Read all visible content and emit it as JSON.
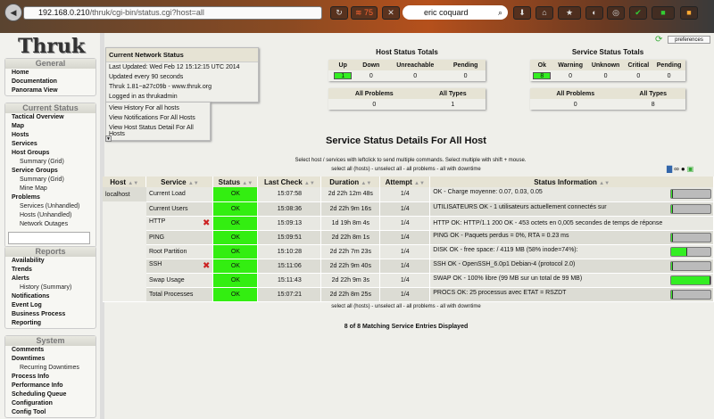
{
  "browser": {
    "url_host": "192.168.0.210",
    "url_path": "/thruk/cgi-bin/status.cgi?host=all",
    "search": "eric coquard",
    "rss_count": "75"
  },
  "sidebar": {
    "logo": "Thruk",
    "sections": [
      {
        "title": "General",
        "items": [
          {
            "label": "Home"
          },
          {
            "label": "Documentation"
          },
          {
            "label": "Panorama View"
          }
        ]
      },
      {
        "title": "Current Status",
        "items": [
          {
            "label": "Tactical Overview"
          },
          {
            "label": "Map"
          },
          {
            "label": "Hosts"
          },
          {
            "label": "Services"
          },
          {
            "label": "Host Groups"
          },
          {
            "label": "Summary (Grid)",
            "sub": true
          },
          {
            "label": "Service Groups"
          },
          {
            "label": "Summary (Grid)",
            "sub": true
          },
          {
            "label": "Mine Map",
            "sub": true
          },
          {
            "label": "Problems"
          },
          {
            "label": "Services (Unhandled)",
            "sub": true
          },
          {
            "label": "Hosts (Unhandled)",
            "sub": true
          },
          {
            "label": "Network Outages",
            "sub": true
          }
        ]
      },
      {
        "title": "Reports",
        "items": [
          {
            "label": "Availability"
          },
          {
            "label": "Trends"
          },
          {
            "label": "Alerts"
          },
          {
            "label": "History (Summary)",
            "sub": true
          },
          {
            "label": "Notifications"
          },
          {
            "label": "Event Log"
          },
          {
            "label": "Business Process"
          },
          {
            "label": "Reporting"
          }
        ]
      },
      {
        "title": "System",
        "items": [
          {
            "label": "Comments"
          },
          {
            "label": "Downtimes"
          },
          {
            "label": "Recurring Downtimes",
            "sub": true
          },
          {
            "label": "Process Info"
          },
          {
            "label": "Performance Info"
          },
          {
            "label": "Scheduling Queue"
          },
          {
            "label": "Configuration"
          },
          {
            "label": "Config Tool"
          }
        ]
      }
    ]
  },
  "network": {
    "title": "Current Network Status",
    "last_updated": "Last Updated: Wed Feb 12 15:12:15 UTC 2014",
    "interval": "Updated every 90 seconds",
    "version": "Thruk 1.81~a27c09b - www.thruk.org",
    "logged_in": "Logged in as thrukadmin",
    "links": [
      "View History For all hosts",
      "View Notifications For All Hosts",
      "View Host Status Detail For All Hosts"
    ]
  },
  "host_totals": {
    "title": "Host Status Totals",
    "headers": [
      "Up",
      "Down",
      "Unreachable",
      "Pending"
    ],
    "values": [
      "1",
      "0",
      "0",
      "0"
    ],
    "headers2": [
      "All Problems",
      "All Types"
    ],
    "values2": [
      "0",
      "1"
    ]
  },
  "service_totals": {
    "title": "Service Status Totals",
    "headers": [
      "Ok",
      "Warning",
      "Unknown",
      "Critical",
      "Pending"
    ],
    "values": [
      "8",
      "0",
      "0",
      "0",
      "0"
    ],
    "headers2": [
      "All Problems",
      "All Types"
    ],
    "values2": [
      "0",
      "8"
    ]
  },
  "preferences": "preferences",
  "details": {
    "title": "Service Status Details For All Host",
    "hint": "Select host / services with leftclick to send multiple commands. Select multiple with shift + mouse.",
    "select_links": "select all (hosts) - unselect all - all problems - all with downtime",
    "footer": "8 of 8 Matching Service Entries Displayed",
    "columns": [
      "Host",
      "Service",
      "Status",
      "Last Check",
      "Duration",
      "Attempt",
      "Status Information"
    ],
    "rows": [
      {
        "host": "localhost",
        "service": "Current Load",
        "status": "OK",
        "last_check": "15:07:58",
        "duration": "2d 22h 12m 48s",
        "attempt": "1/4",
        "info": "OK - Charge moyenne: 0.07, 0.03, 0.05",
        "perf": 2,
        "disabled": false
      },
      {
        "host": "",
        "service": "Current Users",
        "status": "OK",
        "last_check": "15:08:36",
        "duration": "2d 22h 9m 16s",
        "attempt": "1/4",
        "info": "UTILISATEURS OK - 1 utilisateurs actuellement connectés sur",
        "perf": 2,
        "disabled": false
      },
      {
        "host": "",
        "service": "HTTP",
        "status": "OK",
        "last_check": "15:09:13",
        "duration": "1d 19h 8m 4s",
        "attempt": "1/4",
        "info": "HTTP OK: HTTP/1.1 200 OK - 453 octets en 0,005 secondes de temps de réponse",
        "perf": null,
        "disabled": true
      },
      {
        "host": "",
        "service": "PING",
        "status": "OK",
        "last_check": "15:09:51",
        "duration": "2d 22h 8m 1s",
        "attempt": "1/4",
        "info": "PING OK - Paquets perdus = 0%, RTA = 0.23 ms",
        "perf": 2,
        "disabled": false
      },
      {
        "host": "",
        "service": "Root Partition",
        "status": "OK",
        "last_check": "15:10:28",
        "duration": "2d 22h 7m 23s",
        "attempt": "1/4",
        "info": "DISK OK - free space: / 4119 MB (58% inode=74%):",
        "perf": 42,
        "disabled": false
      },
      {
        "host": "",
        "service": "SSH",
        "status": "OK",
        "last_check": "15:11:06",
        "duration": "2d 22h 9m 40s",
        "attempt": "1/4",
        "info": "SSH OK - OpenSSH_6.0p1 Debian-4 (protocol 2.0)",
        "perf": 2,
        "disabled": true
      },
      {
        "host": "",
        "service": "Swap Usage",
        "status": "OK",
        "last_check": "15:11:43",
        "duration": "2d 22h 9m 3s",
        "attempt": "1/4",
        "info": "SWAP OK - 100% libre (99 MB sur un total de 99 MB)",
        "perf": 100,
        "disabled": false
      },
      {
        "host": "",
        "service": "Total Processes",
        "status": "OK",
        "last_check": "15:07:21",
        "duration": "2d 22h 8m 25s",
        "attempt": "1/4",
        "info": "PROCS OK: 25 processus avec ETAT = RSZDT",
        "perf": 2,
        "disabled": false
      }
    ]
  },
  "colors": {
    "ok": "#33ee11",
    "header": "#e6e3d4"
  }
}
